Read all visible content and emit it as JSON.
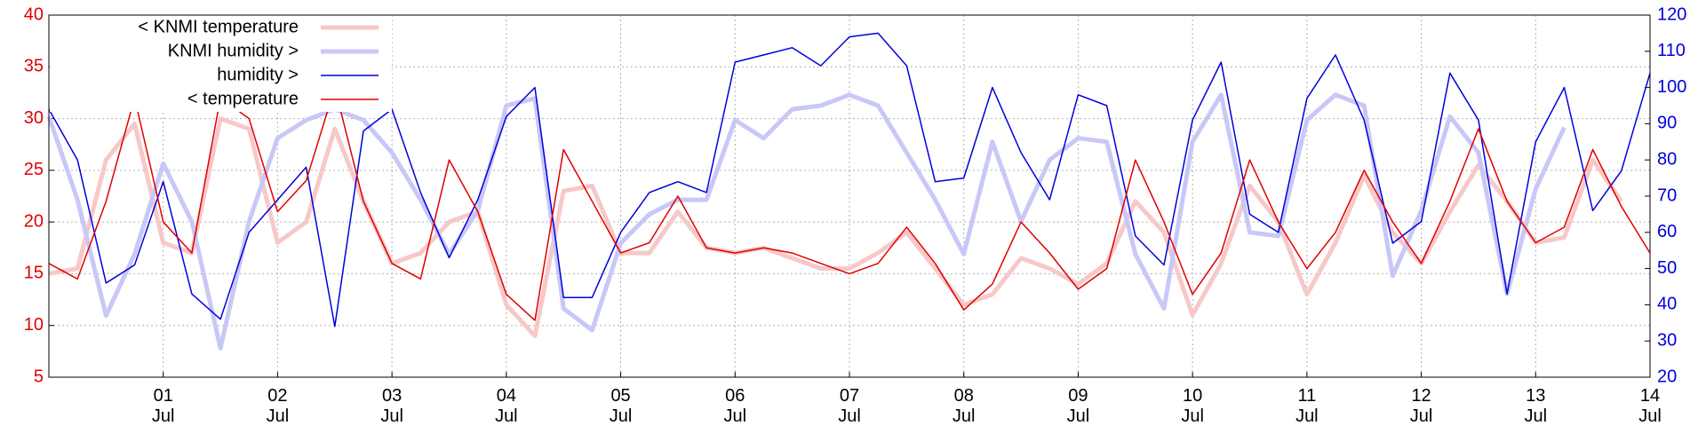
{
  "chart_data": {
    "type": "line",
    "x": [
      0,
      0.25,
      0.5,
      0.75,
      1,
      1.25,
      1.5,
      1.75,
      2,
      2.25,
      2.5,
      2.75,
      3,
      3.25,
      3.5,
      3.75,
      4,
      4.25,
      4.5,
      4.75,
      5,
      5.25,
      5.5,
      5.75,
      6,
      6.25,
      6.5,
      6.75,
      7,
      7.25,
      7.5,
      7.75,
      8,
      8.25,
      8.5,
      8.75,
      9,
      9.25,
      9.5,
      9.75,
      10,
      10.25,
      10.5,
      10.75,
      11,
      11.25,
      11.5,
      11.75,
      12,
      12.25,
      12.5,
      12.75,
      13,
      13.25,
      13.5,
      13.75,
      14
    ],
    "xlim": [
      0,
      14
    ],
    "xticks": [
      {
        "value": 1,
        "label": "01\nJul"
      },
      {
        "value": 2,
        "label": "02\nJul"
      },
      {
        "value": 3,
        "label": "03\nJul"
      },
      {
        "value": 4,
        "label": "04\nJul"
      },
      {
        "value": 5,
        "label": "05\nJul"
      },
      {
        "value": 6,
        "label": "06\nJul"
      },
      {
        "value": 7,
        "label": "07\nJul"
      },
      {
        "value": 8,
        "label": "08\nJul"
      },
      {
        "value": 9,
        "label": "09\nJul"
      },
      {
        "value": 10,
        "label": "10\nJul"
      },
      {
        "value": 11,
        "label": "11\nJul"
      },
      {
        "value": 12,
        "label": "12\nJul"
      },
      {
        "value": 13,
        "label": "13\nJul"
      },
      {
        "value": 14,
        "label": "14\nJul"
      }
    ],
    "ylim": [
      5,
      40
    ],
    "yticks": [
      5,
      10,
      15,
      20,
      25,
      30,
      35,
      40
    ],
    "ycolor": "#e00000",
    "y2lim": [
      20,
      120
    ],
    "y2ticks": [
      20,
      30,
      40,
      50,
      60,
      70,
      80,
      90,
      100,
      110,
      120
    ],
    "y2color": "#0000dd",
    "grid": true,
    "legend": "upper left",
    "series": [
      {
        "name": "< KNMI temperature",
        "color": "#f8c8c8",
        "width": 5,
        "values": [
          15,
          15.5,
          26,
          29.5,
          18,
          17,
          30,
          29,
          18,
          20,
          29,
          22,
          16,
          17,
          20,
          21,
          12,
          9,
          23,
          23.5,
          17,
          17,
          21,
          17.5,
          17,
          17.5,
          16.5,
          15.5,
          15.5,
          17,
          19,
          15.5,
          12,
          13,
          16.5,
          15.5,
          14,
          16,
          22,
          19,
          11,
          16,
          23.5,
          20,
          13,
          18,
          24.5,
          19,
          16,
          21,
          25.5,
          22,
          18,
          18.5,
          26,
          22,
          null
        ]
      },
      {
        "name": "KNMI humidity >",
        "color": "#c8c8f8",
        "width": 5,
        "axis": "y2",
        "values": [
          92,
          69,
          37,
          54,
          79,
          63,
          28,
          63,
          86,
          91,
          94,
          91,
          82,
          69,
          54,
          66,
          95,
          97,
          39,
          33,
          57,
          65,
          69,
          69,
          91,
          86,
          94,
          95,
          98,
          95,
          82,
          69,
          54,
          85,
          63,
          80,
          86,
          85,
          54,
          39,
          85,
          98,
          60,
          59,
          91,
          98,
          95,
          48,
          66,
          92,
          82,
          43,
          72,
          89,
          null,
          null,
          null
        ]
      },
      {
        "name": "humidity >",
        "color": "#0000dd",
        "width": 1.5,
        "axis": "y2",
        "values": [
          94,
          80,
          46,
          51,
          74,
          43,
          36,
          60,
          69,
          78,
          34,
          88,
          94,
          71,
          53,
          69,
          92,
          100,
          42,
          42,
          60,
          71,
          74,
          71,
          107,
          109,
          111,
          106,
          114,
          115,
          106,
          74,
          75,
          100,
          82,
          69,
          98,
          95,
          59,
          51,
          91,
          107,
          65,
          60,
          97,
          109,
          91,
          57,
          63,
          104,
          91,
          43,
          85,
          100,
          66,
          77,
          104
        ]
      },
      {
        "name": "< temperature",
        "color": "#e00000",
        "width": 1.5,
        "values": [
          16,
          14.5,
          22,
          32,
          20,
          17,
          32,
          30,
          21,
          24,
          33,
          22,
          16,
          14.5,
          26,
          21,
          13,
          10.5,
          27,
          22,
          17,
          18,
          22.5,
          17.5,
          17,
          17.5,
          17,
          16,
          15,
          16,
          19.5,
          16,
          11.5,
          14,
          20,
          17,
          13.5,
          15.5,
          26,
          20,
          13,
          17,
          26,
          20,
          15.5,
          19,
          25,
          20,
          16,
          22,
          29,
          22,
          18,
          19.5,
          27,
          21.5,
          17
        ]
      }
    ]
  }
}
